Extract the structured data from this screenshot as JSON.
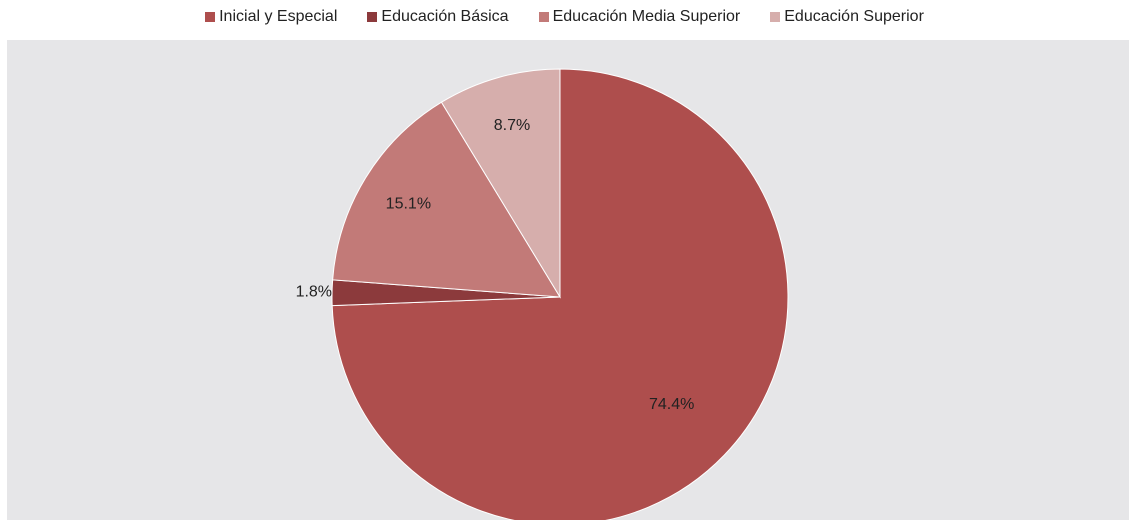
{
  "chart_data": {
    "type": "pie",
    "categories": [
      "Inicial y Especial",
      "Educación Básica",
      "Educación Media Superior",
      "Educación Superior"
    ],
    "values": [
      74.4,
      1.8,
      15.1,
      8.7
    ],
    "value_labels": [
      "74.4%",
      "1.8%",
      "15.1%",
      "8.7%"
    ],
    "colors": [
      "#ae4e4d",
      "#8c3a3c",
      "#c27a78",
      "#d6aeac"
    ],
    "legend_placement": "top",
    "start_angle_deg": 0,
    "direction": "clockwise"
  },
  "legend": {
    "items": [
      {
        "label": "Inicial y Especial",
        "color": "#ae4e4d"
      },
      {
        "label": "Educación Básica",
        "color": "#8c3a3c"
      },
      {
        "label": "Educación Media Superior",
        "color": "#c27a78"
      },
      {
        "label": "Educación Superior",
        "color": "#d6aeac"
      }
    ]
  },
  "plot_background": "#e6e6e8"
}
